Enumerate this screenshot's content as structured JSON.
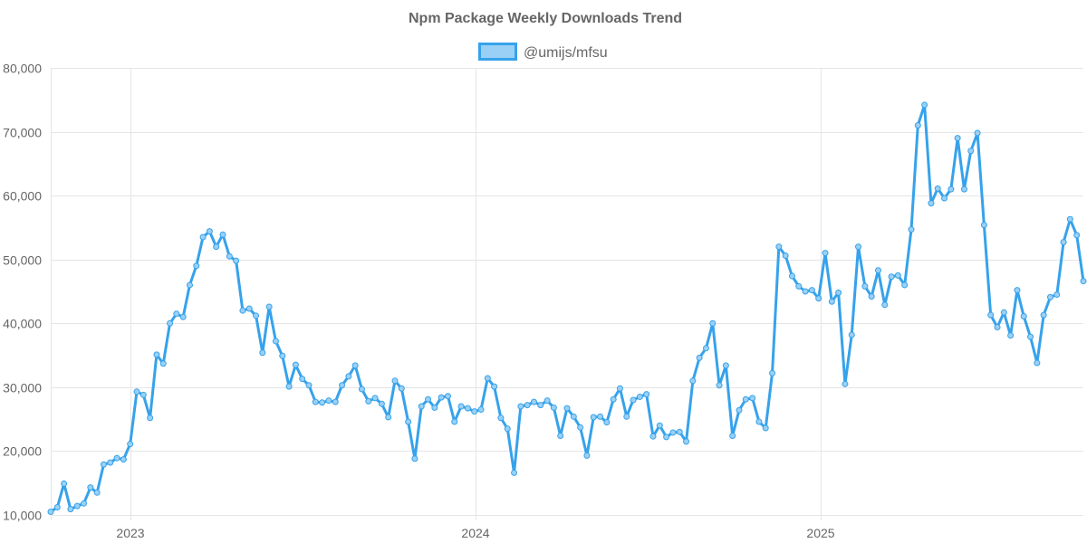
{
  "chart_data": {
    "type": "line",
    "title": "Npm Package Weekly Downloads Trend",
    "xlabel": "",
    "ylabel": "",
    "ylim": [
      10000,
      80000
    ],
    "yticks": [
      "10,000",
      "20,000",
      "30,000",
      "40,000",
      "50,000",
      "60,000",
      "70,000",
      "80,000"
    ],
    "xticks": [
      "2023",
      "2024",
      "2025"
    ],
    "xstart": "2022-10-17",
    "grid": true,
    "legend_position": "top",
    "colors": {
      "line": "#36a2eb",
      "fill": "#9ad0f5",
      "grid": "#e5e5e5",
      "text": "#666666"
    },
    "series": [
      {
        "name": "@umijs/mfsu",
        "values": [
          10500,
          11200,
          14900,
          10900,
          11400,
          11800,
          14300,
          13500,
          17900,
          18200,
          18900,
          18700,
          21100,
          29300,
          28800,
          25200,
          35100,
          33700,
          40000,
          41500,
          41000,
          46000,
          49000,
          53500,
          54400,
          52000,
          53900,
          50500,
          49800,
          42000,
          42300,
          41200,
          35400,
          42600,
          37200,
          34900,
          30100,
          33500,
          31300,
          30300,
          27700,
          27600,
          27900,
          27700,
          30300,
          31700,
          33400,
          29700,
          27800,
          28300,
          27400,
          25300,
          31000,
          29800,
          24600,
          18800,
          27000,
          28100,
          26800,
          28400,
          28600,
          24600,
          27000,
          26700,
          26200,
          26500,
          31400,
          30100,
          25200,
          23500,
          16600,
          27000,
          27200,
          27700,
          27200,
          27900,
          26800,
          22400,
          26700,
          25400,
          23700,
          19300,
          25300,
          25400,
          24500,
          28100,
          29800,
          25400,
          28000,
          28500,
          28900,
          22300,
          24000,
          22200,
          22900,
          23000,
          21500,
          31000,
          34600,
          36100,
          40000,
          30300,
          33400,
          22400,
          26400,
          28100,
          28300,
          24600,
          23600,
          32200,
          52000,
          50600,
          47400,
          45800,
          45000,
          45200,
          43900,
          51000,
          43400,
          44800,
          30500,
          38200,
          52000,
          45800,
          44200,
          48300,
          42900,
          47300,
          47500,
          46000,
          54700,
          71000,
          74200,
          58800,
          61100,
          59600,
          61000,
          69000,
          61000,
          67000,
          69800,
          55400,
          41300,
          39400,
          41700,
          38100,
          45200,
          41100,
          37900,
          33800,
          41300,
          44100,
          44500,
          52700,
          56300,
          53800,
          46600
        ]
      }
    ]
  }
}
